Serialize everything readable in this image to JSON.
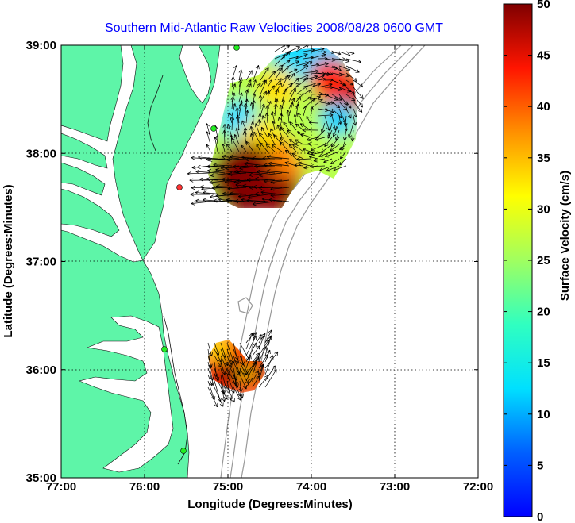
{
  "title": "Southern Mid-Atlantic Raw Velocities 2008/08/28 0600 GMT",
  "xlabel": "Longitude (Degrees:Minutes)",
  "ylabel": "Latitude (Degrees:Minutes)",
  "colorbar_label": "Surface Velocity (cm/s)",
  "x_ticks": [
    "77:00",
    "76:00",
    "75:00",
    "74:00",
    "73:00",
    "72:00"
  ],
  "y_ticks": [
    "39:00",
    "38:00",
    "37:00",
    "36:00",
    "35:00"
  ],
  "colorbar_ticks": [
    "0",
    "5",
    "10",
    "15",
    "20",
    "25",
    "30",
    "35",
    "40",
    "45",
    "50"
  ],
  "colors": {
    "land": "#5ef5a8",
    "water": "#ffffff",
    "title": "#0000ff",
    "station": "#22ee22",
    "station_alt": "#ff3333",
    "bathymetry": "#999999"
  },
  "chart_data": {
    "type": "heatmap",
    "title": "Southern Mid-Atlantic Raw Velocities 2008/08/28 0600 GMT",
    "xlabel": "Longitude (Degrees:Minutes)",
    "ylabel": "Latitude (Degrees:Minutes)",
    "xlim": [
      -77,
      -72
    ],
    "ylim": [
      35,
      39
    ],
    "grid": true,
    "colorbar": {
      "label": "Surface Velocity (cm/s)",
      "range": [
        0,
        50
      ],
      "colormap": "jet"
    },
    "patches": [
      {
        "name": "northern",
        "lon_range": [
          -75.3,
          -73.4
        ],
        "lat_range": [
          37.45,
          38.95
        ],
        "samples": [
          {
            "lon": -74.6,
            "lat": 38.85,
            "v": 12
          },
          {
            "lon": -74.3,
            "lat": 38.8,
            "v": 9
          },
          {
            "lon": -73.85,
            "lat": 38.7,
            "v": 48
          },
          {
            "lon": -73.7,
            "lat": 38.55,
            "v": 45
          },
          {
            "lon": -73.85,
            "lat": 38.35,
            "v": 10
          },
          {
            "lon": -74.1,
            "lat": 38.45,
            "v": 22
          },
          {
            "lon": -74.4,
            "lat": 38.5,
            "v": 28
          },
          {
            "lon": -74.9,
            "lat": 38.6,
            "v": 26
          },
          {
            "lon": -75.05,
            "lat": 38.3,
            "v": 15
          },
          {
            "lon": -74.7,
            "lat": 38.25,
            "v": 20
          },
          {
            "lon": -74.3,
            "lat": 38.15,
            "v": 24
          },
          {
            "lon": -73.9,
            "lat": 38.1,
            "v": 22
          },
          {
            "lon": -75.0,
            "lat": 37.85,
            "v": 50
          },
          {
            "lon": -74.6,
            "lat": 37.7,
            "v": 50
          },
          {
            "lon": -74.4,
            "lat": 37.95,
            "v": 38
          }
        ]
      },
      {
        "name": "southern",
        "lon_range": [
          -75.2,
          -74.6
        ],
        "lat_range": [
          35.85,
          36.2
        ],
        "samples": [
          {
            "lon": -75.1,
            "lat": 36.1,
            "v": 28
          },
          {
            "lon": -74.95,
            "lat": 35.95,
            "v": 48
          },
          {
            "lon": -74.8,
            "lat": 36.0,
            "v": 45
          },
          {
            "lon": -74.7,
            "lat": 35.95,
            "v": 50
          }
        ]
      }
    ]
  }
}
